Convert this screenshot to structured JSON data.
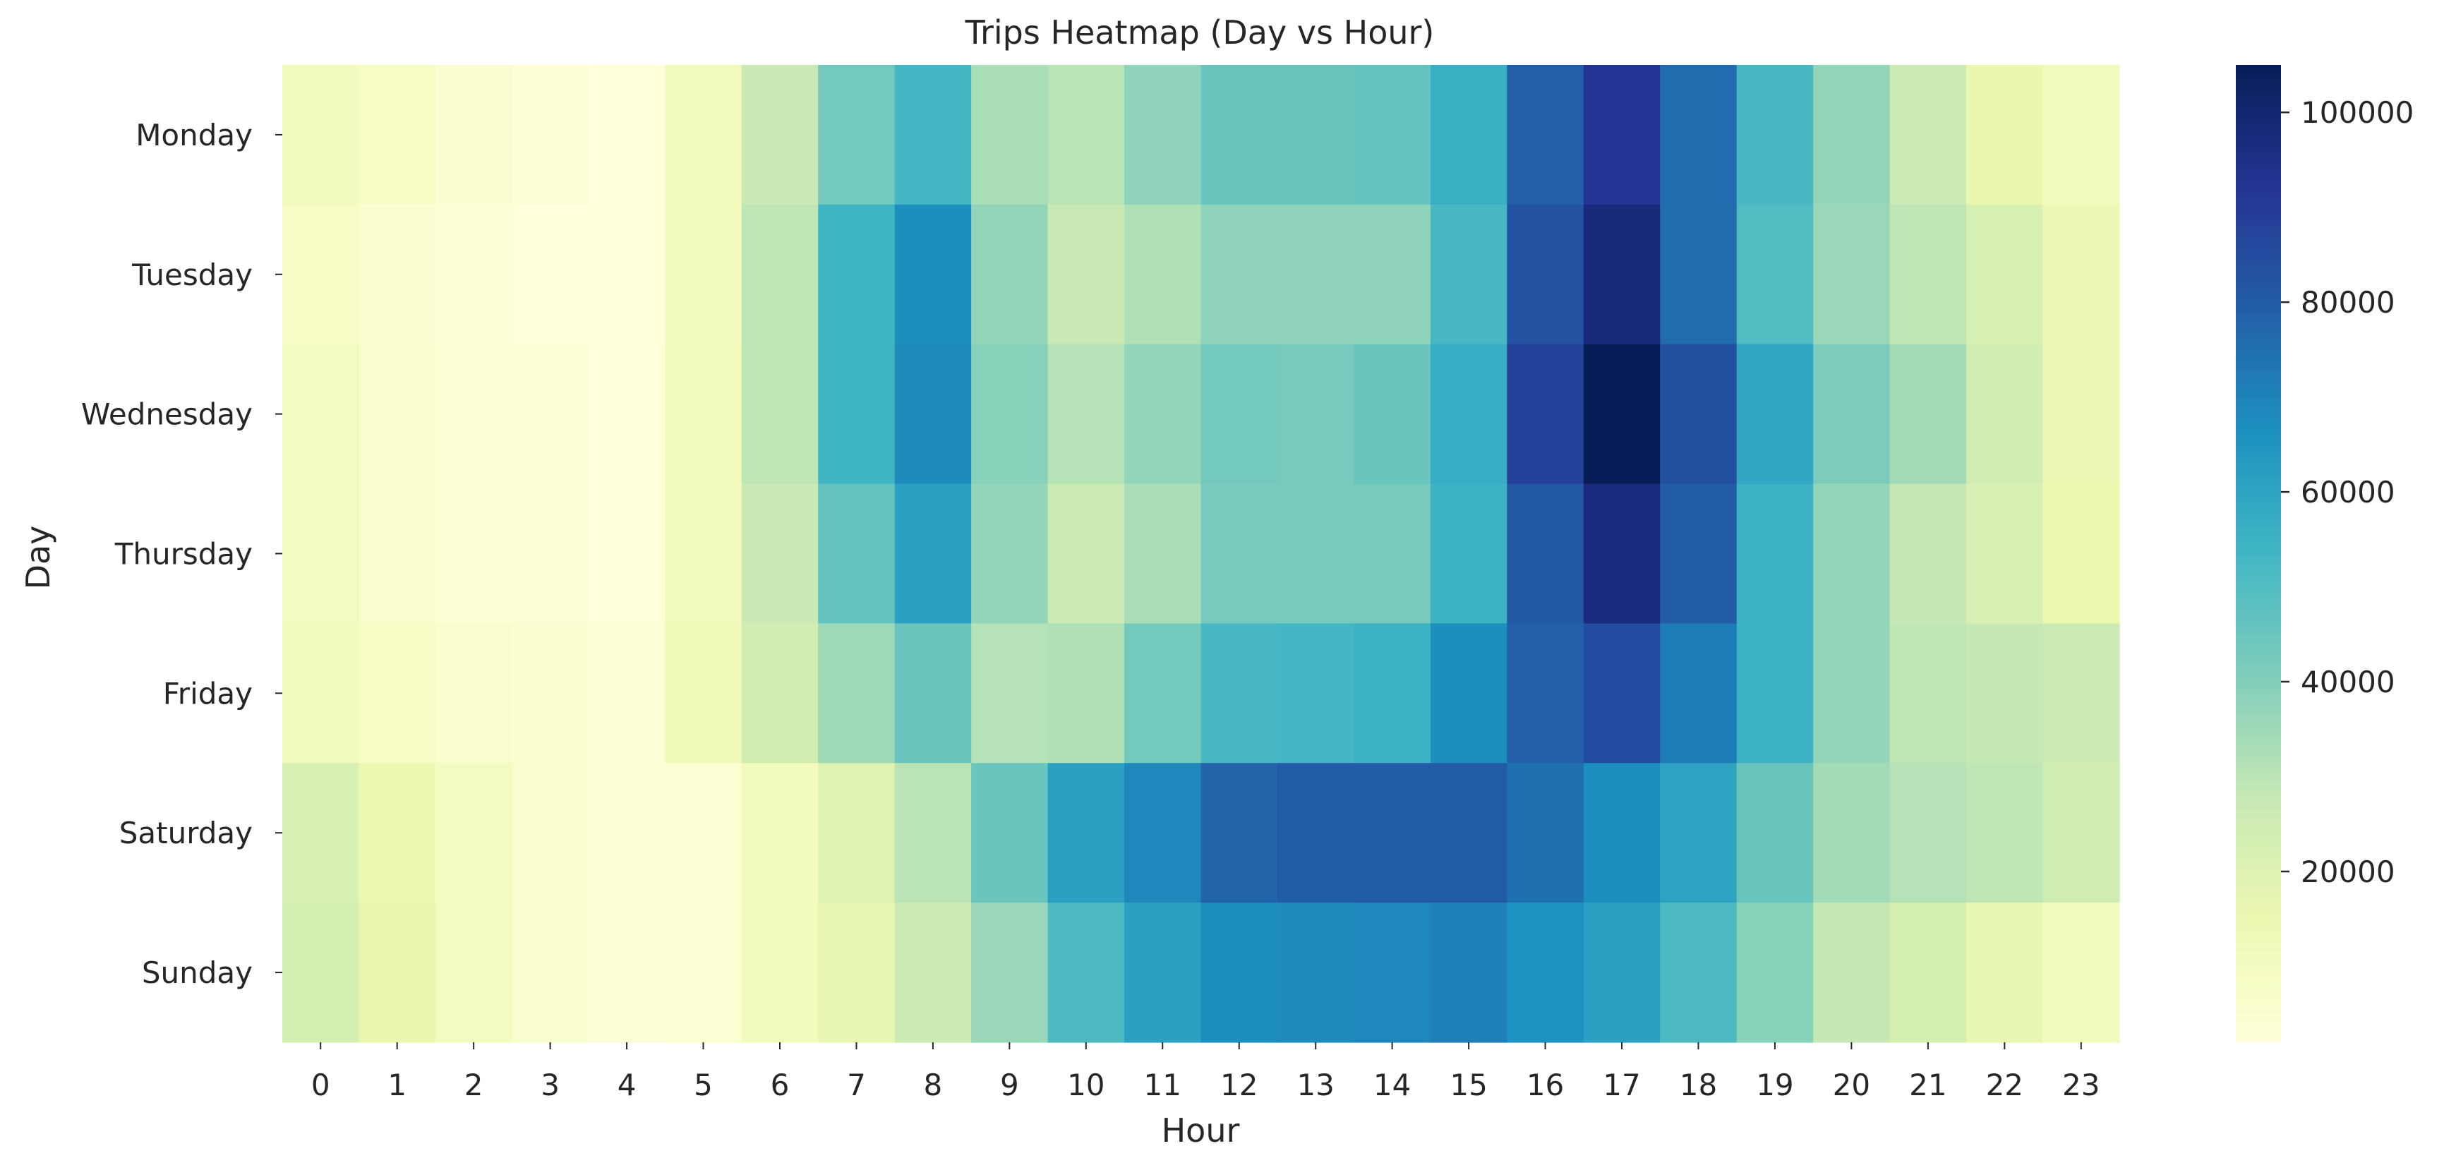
{
  "chart_data": {
    "type": "heatmap",
    "title": "Trips Heatmap (Day vs Hour)",
    "xlabel": "Hour",
    "ylabel": "Day",
    "x": [
      "0",
      "1",
      "2",
      "3",
      "4",
      "5",
      "6",
      "7",
      "8",
      "9",
      "10",
      "11",
      "12",
      "13",
      "14",
      "15",
      "16",
      "17",
      "18",
      "19",
      "20",
      "21",
      "22",
      "23"
    ],
    "y": [
      "Monday",
      "Tuesday",
      "Wednesday",
      "Thursday",
      "Friday",
      "Saturday",
      "Sunday"
    ],
    "values": [
      [
        11000,
        8000,
        5000,
        3000,
        2000,
        11000,
        27000,
        43000,
        53000,
        33000,
        30000,
        38000,
        45000,
        45000,
        46000,
        56000,
        79000,
        92000,
        76000,
        52000,
        37000,
        26000,
        16000,
        11000
      ],
      [
        8000,
        5000,
        3000,
        2000,
        2000,
        11000,
        29000,
        54000,
        67000,
        37000,
        27000,
        32000,
        38000,
        38000,
        38000,
        52000,
        83000,
        98000,
        76000,
        50000,
        36000,
        29000,
        22000,
        14000
      ],
      [
        10000,
        6000,
        4000,
        3000,
        2000,
        12000,
        29000,
        54000,
        68000,
        39000,
        31000,
        37000,
        43000,
        42000,
        45000,
        57000,
        88000,
        105000,
        84000,
        59000,
        41000,
        34000,
        24000,
        14000
      ],
      [
        10000,
        6000,
        4000,
        3000,
        2000,
        12000,
        27000,
        46000,
        61000,
        37000,
        26000,
        33000,
        42000,
        42000,
        42000,
        55000,
        81000,
        97000,
        80000,
        55000,
        37000,
        28000,
        22000,
        15000
      ],
      [
        12000,
        8000,
        6000,
        5000,
        3000,
        13000,
        24000,
        35000,
        45000,
        31000,
        32000,
        43000,
        52000,
        53000,
        55000,
        67000,
        79000,
        85000,
        72000,
        55000,
        37000,
        29000,
        28000,
        26000
      ],
      [
        22000,
        15000,
        10000,
        6000,
        3000,
        4000,
        11000,
        20000,
        30000,
        45000,
        61000,
        69000,
        78000,
        80000,
        80000,
        80000,
        75000,
        67000,
        60000,
        45000,
        34000,
        31000,
        29000,
        25000
      ],
      [
        23000,
        16000,
        10000,
        6000,
        3000,
        4000,
        11000,
        17000,
        26000,
        36000,
        51000,
        61000,
        67000,
        68000,
        69000,
        71000,
        66000,
        61000,
        51000,
        39000,
        28000,
        23000,
        17000,
        11000
      ]
    ],
    "colorbar": {
      "min": 2000,
      "max": 105000,
      "ticks": [
        "20000",
        "40000",
        "60000",
        "80000",
        "100000"
      ]
    },
    "colormap": "YlGnBu",
    "grid": false,
    "legend": "colorbar-right"
  }
}
